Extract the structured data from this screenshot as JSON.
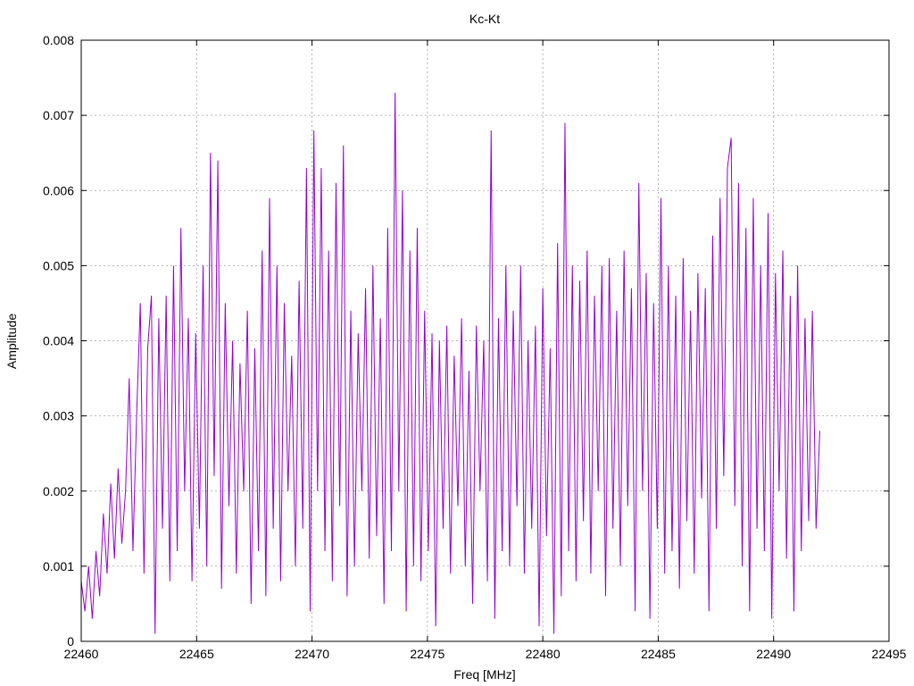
{
  "chart_data": {
    "type": "line",
    "title": "Kc-Kt",
    "xlabel": "Freq [MHz]",
    "ylabel": "Amplitude",
    "xlim": [
      22460,
      22495
    ],
    "ylim": [
      0,
      0.008
    ],
    "xticks": [
      22460,
      22465,
      22470,
      22475,
      22480,
      22485,
      22490,
      22495
    ],
    "yticks": [
      0,
      0.001,
      0.002,
      0.003,
      0.004,
      0.005,
      0.006,
      0.007,
      0.008
    ],
    "ytick_labels": [
      "0",
      "0.001",
      "0.002",
      "0.003",
      "0.004",
      "0.005",
      "0.006",
      "0.007",
      "0.008"
    ],
    "grid": true,
    "line_color": "#9400d3",
    "series": [
      {
        "name": "Kc-Kt",
        "x_start": 22460,
        "x_step": 0.16,
        "values": [
          0.0008,
          0.0004,
          0.001,
          0.0003,
          0.0012,
          0.0006,
          0.0017,
          0.0009,
          0.0021,
          0.0011,
          0.0023,
          0.0013,
          0.002,
          0.0035,
          0.0012,
          0.003,
          0.0045,
          0.0009,
          0.0039,
          0.0046,
          0.0001,
          0.0043,
          0.0015,
          0.0046,
          0.0008,
          0.005,
          0.0012,
          0.0055,
          0.002,
          0.0043,
          0.0008,
          0.0041,
          0.0015,
          0.005,
          0.001,
          0.0065,
          0.0022,
          0.0064,
          0.0007,
          0.0045,
          0.0018,
          0.004,
          0.0009,
          0.0037,
          0.002,
          0.0044,
          0.0005,
          0.0039,
          0.0012,
          0.0052,
          0.0006,
          0.0059,
          0.0015,
          0.005,
          0.0008,
          0.0045,
          0.002,
          0.0038,
          0.001,
          0.0048,
          0.0015,
          0.0063,
          0.0004,
          0.0068,
          0.002,
          0.0063,
          0.0012,
          0.0052,
          0.0008,
          0.0061,
          0.0018,
          0.0066,
          0.0006,
          0.0044,
          0.001,
          0.0041,
          0.002,
          0.0047,
          0.0011,
          0.005,
          0.0014,
          0.0043,
          0.0005,
          0.0055,
          0.0012,
          0.0073,
          0.002,
          0.006,
          0.0004,
          0.0052,
          0.001,
          0.0055,
          0.0008,
          0.0044,
          0.0012,
          0.0041,
          0.0002,
          0.004,
          0.0015,
          0.0042,
          0.0009,
          0.0038,
          0.0018,
          0.0043,
          0.001,
          0.0036,
          0.0005,
          0.0042,
          0.002,
          0.004,
          0.0008,
          0.0068,
          0.0003,
          0.0043,
          0.0012,
          0.005,
          0.001,
          0.0044,
          0.0018,
          0.005,
          0.0009,
          0.004,
          0.0015,
          0.0042,
          0.0002,
          0.0047,
          0.0014,
          0.0039,
          0.0001,
          0.0053,
          0.0006,
          0.0069,
          0.0012,
          0.005,
          0.0008,
          0.0048,
          0.0016,
          0.0052,
          0.0009,
          0.0046,
          0.002,
          0.005,
          0.0006,
          0.0051,
          0.0015,
          0.0044,
          0.001,
          0.0052,
          0.0018,
          0.0047,
          0.0004,
          0.0061,
          0.002,
          0.0049,
          0.0003,
          0.0045,
          0.0015,
          0.0059,
          0.0009,
          0.005,
          0.0012,
          0.0046,
          0.0007,
          0.0051,
          0.0016,
          0.0044,
          0.0009,
          0.0049,
          0.0019,
          0.0047,
          0.0004,
          0.0054,
          0.0015,
          0.0059,
          0.0022,
          0.0063,
          0.0067,
          0.0018,
          0.0061,
          0.001,
          0.0055,
          0.0004,
          0.0059,
          0.0015,
          0.005,
          0.0012,
          0.0057,
          0.0003,
          0.0049,
          0.002,
          0.0052,
          0.0011,
          0.0046,
          0.0004,
          0.005,
          0.0012,
          0.0043,
          0.0016,
          0.0044,
          0.0015,
          0.0028
        ]
      }
    ]
  }
}
